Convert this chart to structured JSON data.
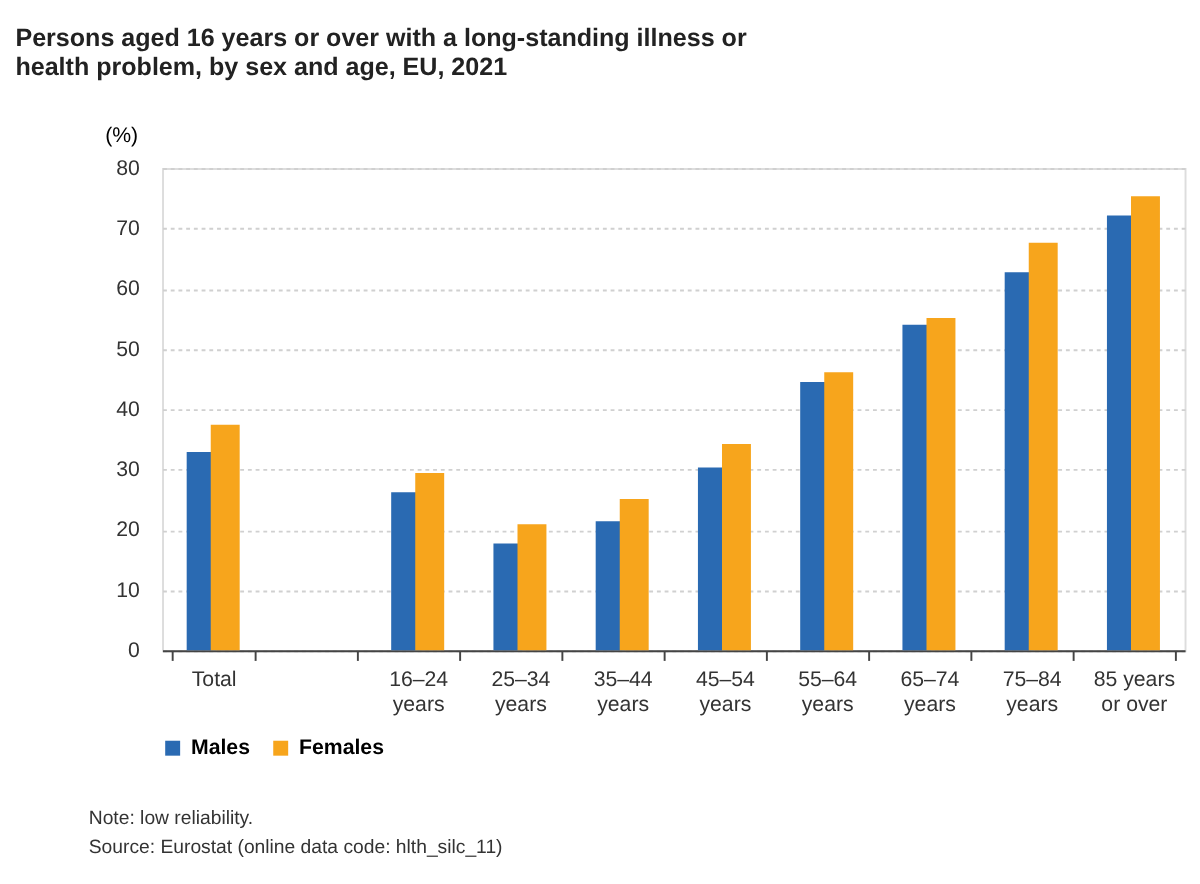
{
  "chart_data": {
    "type": "bar",
    "title": "Persons aged 16 years or over with a long-standing illness or health problem, by sex and age, EU, 2021",
    "ylabel": "(%)",
    "categories": [
      "Total",
      null,
      "16–24\nyears",
      "25–34\nyears",
      "35–44\nyears",
      "45–54\nyears",
      "55–64\nyears",
      "65–74\nyears",
      "75–84\nyears",
      "85 years\nor over"
    ],
    "series": [
      {
        "name": "Males",
        "color": "#2a6ab2",
        "values": [
          32.9,
          null,
          26.2,
          17.7,
          21.4,
          30.3,
          44.5,
          54.0,
          62.7,
          72.1
        ]
      },
      {
        "name": "Females",
        "color": "#f7a51c",
        "values": [
          37.4,
          null,
          29.4,
          20.9,
          25.1,
          34.2,
          46.1,
          55.1,
          67.6,
          75.3
        ]
      }
    ],
    "ylim": [
      0,
      80
    ],
    "yticks": [
      0,
      10,
      20,
      30,
      40,
      50,
      60,
      70,
      80
    ],
    "grid": "y",
    "legend": "bottom",
    "annotations": [
      "Note: low reliability.",
      "Source: Eurostat (online data code: hlth_silc_11)"
    ]
  }
}
